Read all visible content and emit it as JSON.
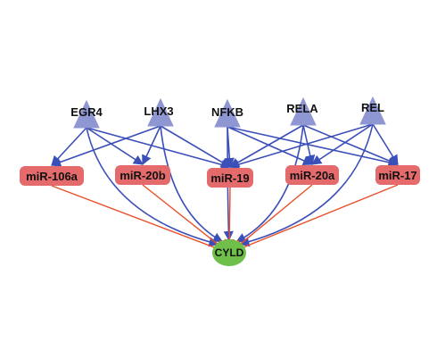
{
  "colors": {
    "tf_node": "#8f97d2",
    "mir_node": "#e46a6c",
    "target_node": "#6ec04a",
    "activation_edge": "#3b4fb8",
    "inhibition_edge": "#e8502a"
  },
  "transcription_factors": [
    {
      "id": "egr4",
      "label": "EGR4",
      "shape": "triangle"
    },
    {
      "id": "lhx3",
      "label": "LHX3",
      "shape": "triangle"
    },
    {
      "id": "nfkb",
      "label": "NFKB",
      "shape": "triangle"
    },
    {
      "id": "rela",
      "label": "RELA",
      "shape": "triangle"
    },
    {
      "id": "rel",
      "label": "REL",
      "shape": "triangle"
    }
  ],
  "mirnas": [
    {
      "id": "mir106a",
      "label": "miR-106a",
      "shape": "rounded-square"
    },
    {
      "id": "mir20b",
      "label": "miR-20b",
      "shape": "rounded-square"
    },
    {
      "id": "mir19",
      "label": "miR-19",
      "shape": "rounded-square"
    },
    {
      "id": "mir20a",
      "label": "miR-20a",
      "shape": "rounded-square"
    },
    {
      "id": "mir17",
      "label": "miR-17",
      "shape": "rounded-square"
    }
  ],
  "target": {
    "id": "cyld",
    "label": "CYLD",
    "shape": "circle"
  },
  "activation_edges": [
    [
      "egr4",
      "mir106a"
    ],
    [
      "egr4",
      "mir20b"
    ],
    [
      "egr4",
      "mir19"
    ],
    [
      "egr4",
      "cyld"
    ],
    [
      "lhx3",
      "mir106a"
    ],
    [
      "lhx3",
      "mir20b"
    ],
    [
      "lhx3",
      "mir19"
    ],
    [
      "lhx3",
      "cyld"
    ],
    [
      "nfkb",
      "mir19"
    ],
    [
      "nfkb",
      "mir20a"
    ],
    [
      "nfkb",
      "mir17"
    ],
    [
      "nfkb",
      "cyld"
    ],
    [
      "rela",
      "mir19"
    ],
    [
      "rela",
      "mir20a"
    ],
    [
      "rela",
      "mir17"
    ],
    [
      "rela",
      "cyld"
    ],
    [
      "rel",
      "mir19"
    ],
    [
      "rel",
      "mir20a"
    ],
    [
      "rel",
      "mir17"
    ],
    [
      "rel",
      "cyld"
    ]
  ],
  "inhibition_edges": [
    [
      "mir106a",
      "cyld"
    ],
    [
      "mir20b",
      "cyld"
    ],
    [
      "mir19",
      "cyld"
    ],
    [
      "mir20a",
      "cyld"
    ],
    [
      "mir17",
      "cyld"
    ]
  ]
}
